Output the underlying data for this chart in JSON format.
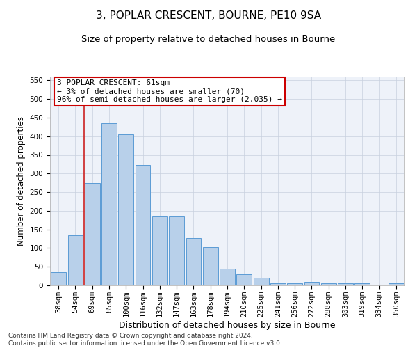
{
  "title": "3, POPLAR CRESCENT, BOURNE, PE10 9SA",
  "subtitle": "Size of property relative to detached houses in Bourne",
  "xlabel": "Distribution of detached houses by size in Bourne",
  "ylabel": "Number of detached properties",
  "categories": [
    "38sqm",
    "54sqm",
    "69sqm",
    "85sqm",
    "100sqm",
    "116sqm",
    "132sqm",
    "147sqm",
    "163sqm",
    "178sqm",
    "194sqm",
    "210sqm",
    "225sqm",
    "241sqm",
    "256sqm",
    "272sqm",
    "288sqm",
    "303sqm",
    "319sqm",
    "334sqm",
    "350sqm"
  ],
  "values": [
    35,
    135,
    275,
    435,
    405,
    323,
    185,
    185,
    127,
    103,
    45,
    30,
    20,
    6,
    6,
    10,
    5,
    5,
    5,
    2,
    6
  ],
  "bar_color": "#b8d0ea",
  "bar_edge_color": "#5b9bd5",
  "property_line_x": 1.5,
  "annotation_text": "3 POPLAR CRESCENT: 61sqm\n← 3% of detached houses are smaller (70)\n96% of semi-detached houses are larger (2,035) →",
  "annotation_box_color": "#ffffff",
  "annotation_box_edge_color": "#cc0000",
  "vline_color": "#cc2222",
  "ylim": [
    0,
    560
  ],
  "yticks": [
    0,
    50,
    100,
    150,
    200,
    250,
    300,
    350,
    400,
    450,
    500,
    550
  ],
  "bg_color": "#eef2f9",
  "grid_color": "#c8d0de",
  "footer": "Contains HM Land Registry data © Crown copyright and database right 2024.\nContains public sector information licensed under the Open Government Licence v3.0.",
  "title_fontsize": 11,
  "subtitle_fontsize": 9.5,
  "xlabel_fontsize": 9,
  "ylabel_fontsize": 8.5,
  "tick_fontsize": 7.5,
  "annot_fontsize": 8,
  "footer_fontsize": 6.5
}
